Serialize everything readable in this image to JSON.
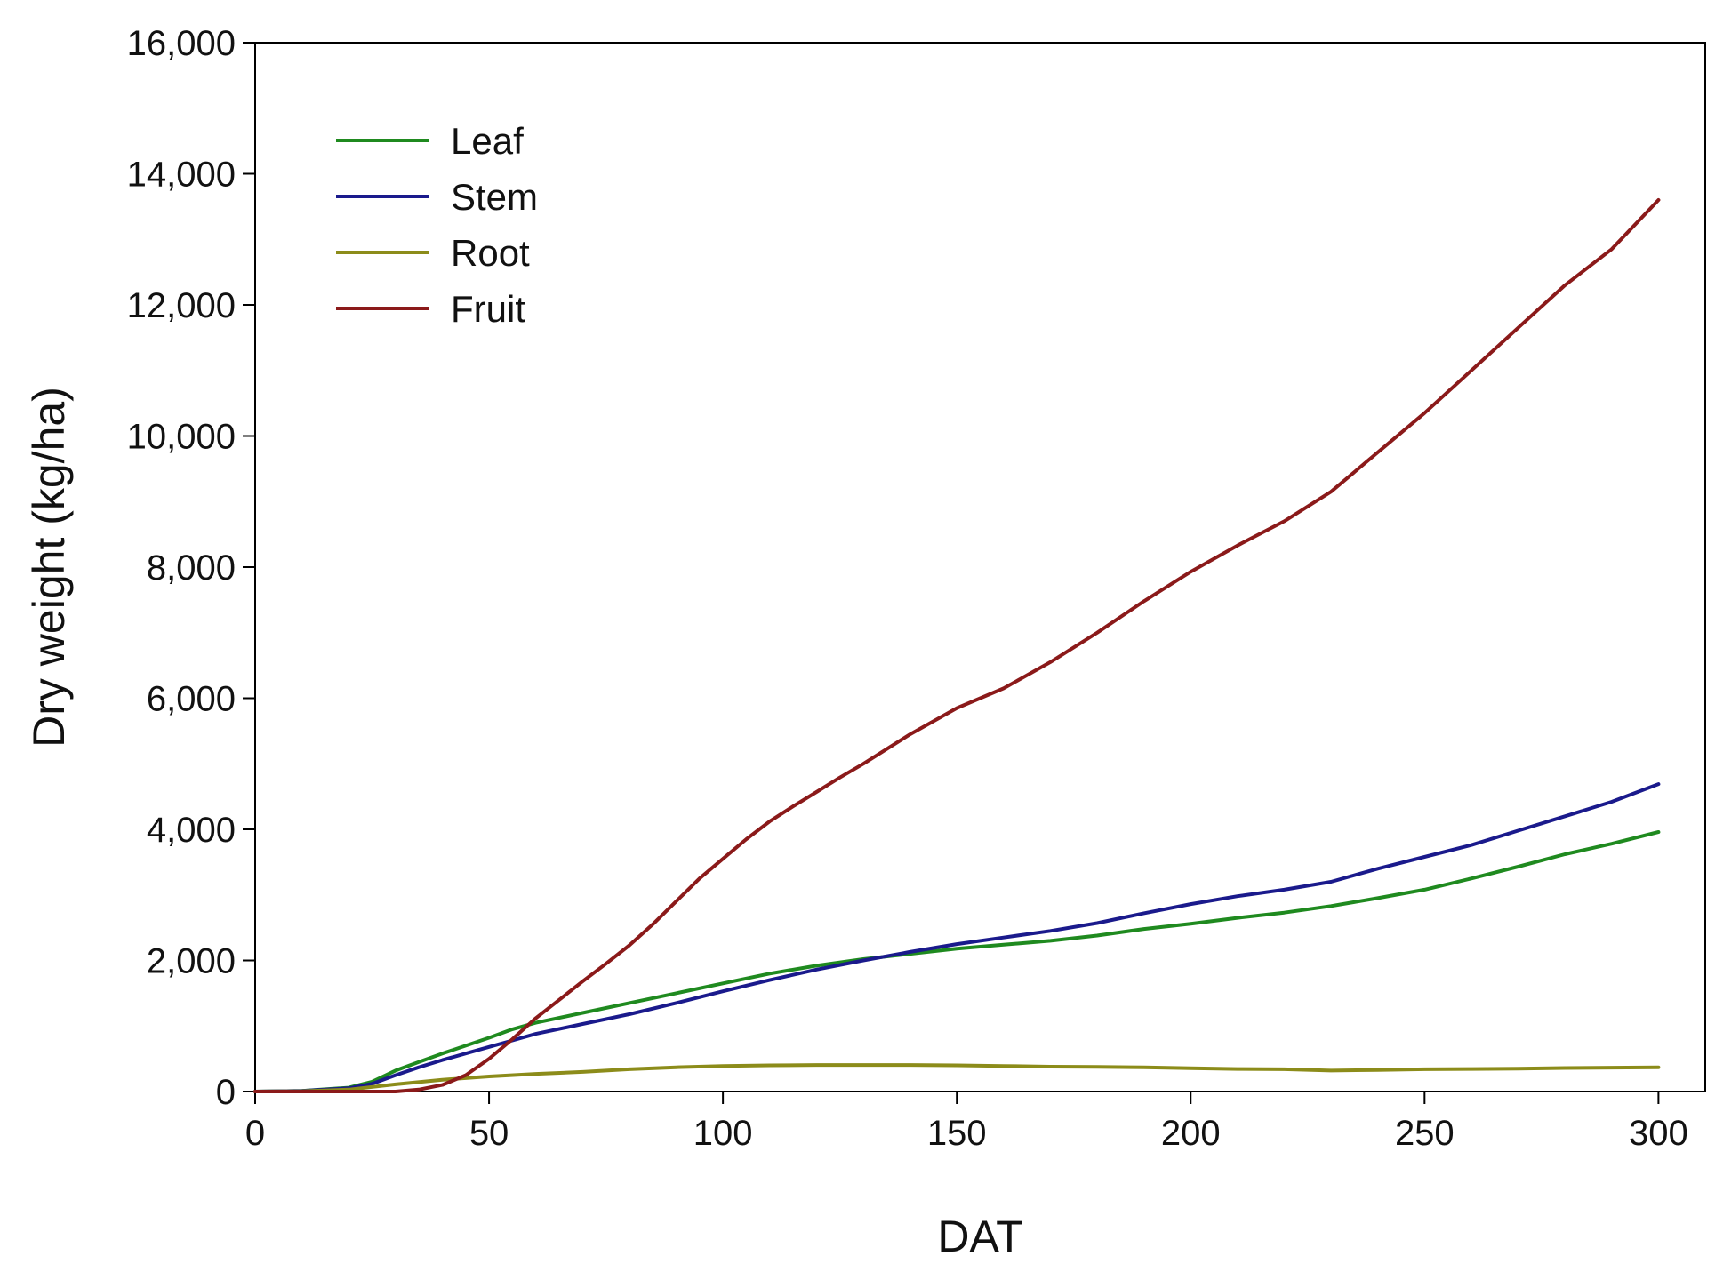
{
  "chart_data": {
    "type": "line",
    "title": "",
    "xlabel": "DAT",
    "ylabel": "Dry weight (kg/ha)",
    "xlim": [
      0,
      310
    ],
    "ylim": [
      0,
      16000
    ],
    "x_ticks": [
      0,
      50,
      100,
      150,
      200,
      250,
      300
    ],
    "y_ticks": [
      0,
      2000,
      4000,
      6000,
      8000,
      10000,
      12000,
      14000,
      16000
    ],
    "x_tick_labels": [
      "0",
      "50",
      "100",
      "150",
      "200",
      "250",
      "300"
    ],
    "y_tick_labels": [
      "0",
      "2,000",
      "4,000",
      "6,000",
      "8,000",
      "10,000",
      "12,000",
      "14,000",
      "16,000"
    ],
    "grid": false,
    "legend_position": "top-left",
    "series": [
      {
        "name": "Leaf",
        "color": "#1f8a1f",
        "x": [
          0,
          10,
          20,
          25,
          30,
          35,
          40,
          45,
          50,
          55,
          60,
          70,
          80,
          90,
          100,
          110,
          120,
          130,
          140,
          150,
          160,
          170,
          180,
          190,
          200,
          210,
          220,
          230,
          240,
          250,
          260,
          270,
          280,
          290,
          300
        ],
        "y": [
          0,
          10,
          60,
          150,
          320,
          450,
          580,
          700,
          820,
          950,
          1050,
          1200,
          1350,
          1500,
          1650,
          1800,
          1920,
          2020,
          2100,
          2180,
          2240,
          2300,
          2380,
          2480,
          2560,
          2650,
          2730,
          2830,
          2950,
          3080,
          3250,
          3430,
          3620,
          3780,
          3960
        ]
      },
      {
        "name": "Stem",
        "color": "#1a1a8c",
        "x": [
          0,
          10,
          20,
          25,
          30,
          35,
          40,
          45,
          50,
          55,
          60,
          70,
          80,
          90,
          100,
          110,
          120,
          130,
          140,
          150,
          160,
          170,
          180,
          190,
          200,
          210,
          220,
          230,
          240,
          250,
          260,
          270,
          280,
          290,
          300
        ],
        "y": [
          0,
          10,
          50,
          120,
          250,
          370,
          480,
          580,
          680,
          780,
          880,
          1030,
          1180,
          1350,
          1530,
          1700,
          1860,
          2000,
          2130,
          2250,
          2350,
          2450,
          2570,
          2720,
          2860,
          2980,
          3080,
          3200,
          3400,
          3580,
          3760,
          3980,
          4200,
          4420,
          4690
        ]
      },
      {
        "name": "Root",
        "color": "#8c8c1a",
        "x": [
          0,
          10,
          20,
          30,
          40,
          50,
          60,
          70,
          80,
          90,
          100,
          110,
          120,
          130,
          140,
          150,
          160,
          170,
          180,
          190,
          200,
          210,
          220,
          230,
          240,
          250,
          260,
          270,
          280,
          290,
          300
        ],
        "y": [
          0,
          5,
          30,
          110,
          180,
          230,
          270,
          300,
          340,
          370,
          390,
          400,
          405,
          405,
          405,
          400,
          390,
          380,
          375,
          370,
          355,
          345,
          340,
          320,
          330,
          340,
          345,
          350,
          360,
          365,
          370
        ]
      },
      {
        "name": "Fruit",
        "color": "#8b1a1a",
        "x": [
          0,
          30,
          35,
          40,
          45,
          50,
          55,
          60,
          65,
          70,
          75,
          80,
          85,
          90,
          95,
          100,
          105,
          110,
          115,
          120,
          125,
          130,
          140,
          150,
          160,
          170,
          180,
          190,
          200,
          210,
          220,
          230,
          240,
          250,
          260,
          270,
          280,
          290,
          300
        ],
        "y": [
          0,
          0,
          30,
          100,
          250,
          500,
          800,
          1120,
          1400,
          1680,
          1950,
          2230,
          2550,
          2900,
          3250,
          3550,
          3850,
          4120,
          4350,
          4570,
          4790,
          5000,
          5450,
          5850,
          6150,
          6550,
          7000,
          7480,
          7930,
          8330,
          8700,
          9150,
          9750,
          10350,
          11000,
          11650,
          12300,
          12850,
          13600
        ]
      }
    ]
  }
}
